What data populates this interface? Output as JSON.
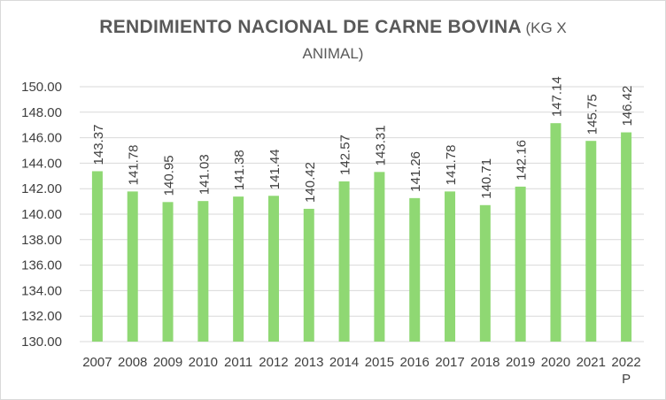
{
  "chart_data": {
    "type": "bar",
    "title": "RENDIMIENTO NACIONAL DE CARNE BOVINA",
    "title_suffix_line1": "(KG X",
    "title_suffix_line2": "ANIMAL)",
    "categories": [
      "2007",
      "2008",
      "2009",
      "2010",
      "2011",
      "2012",
      "2013",
      "2014",
      "2015",
      "2016",
      "2017",
      "2018",
      "2019",
      "2020",
      "2021",
      "2022 P"
    ],
    "values": [
      143.37,
      141.78,
      140.95,
      141.03,
      141.38,
      141.44,
      140.42,
      142.57,
      143.31,
      141.26,
      141.78,
      140.71,
      142.16,
      147.14,
      145.75,
      146.42
    ],
    "data_labels": [
      "143.37",
      "141.78",
      "140.95",
      "141.03",
      "141.38",
      "141.44",
      "140.42",
      "142.57",
      "143.31",
      "141.26",
      "141.78",
      "140.71",
      "142.16",
      "147.14",
      "145.75",
      "146.42"
    ],
    "ylim": [
      130,
      150
    ],
    "yticks": [
      "130.00",
      "132.00",
      "134.00",
      "136.00",
      "138.00",
      "140.00",
      "142.00",
      "144.00",
      "146.00",
      "148.00",
      "150.00"
    ],
    "ytick_values": [
      130,
      132,
      134,
      136,
      138,
      140,
      142,
      144,
      146,
      148,
      150
    ],
    "xlabel": "",
    "ylabel": "",
    "grid": true,
    "legend": "none",
    "bar_color": "#8fd873",
    "grid_color": "#d9d9d9"
  }
}
